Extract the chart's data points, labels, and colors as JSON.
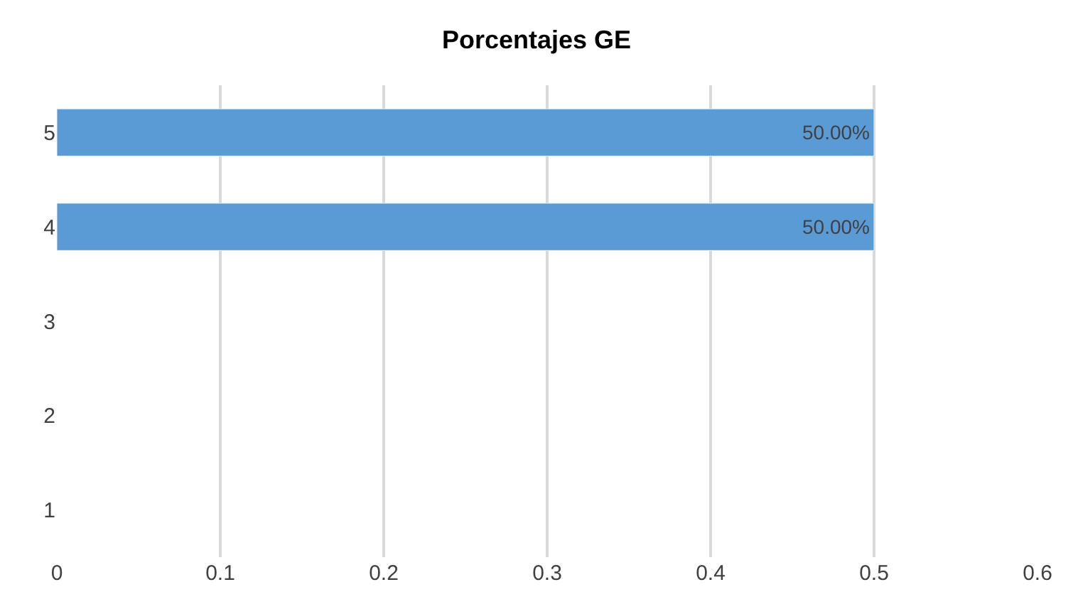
{
  "chart_data": {
    "type": "bar",
    "orientation": "horizontal",
    "title": "Porcentajes GE",
    "categories": [
      "5",
      "4",
      "3",
      "2",
      "1"
    ],
    "values": [
      0.5,
      0.5,
      null,
      null,
      null
    ],
    "value_labels": [
      "50.00%",
      "50.00%",
      null,
      null,
      null
    ],
    "color": "#5b9bd5",
    "xlim": [
      0,
      0.6
    ],
    "xticks": [
      0,
      0.1,
      0.2,
      0.3,
      0.4,
      0.5,
      0.6
    ],
    "grid": "x"
  }
}
